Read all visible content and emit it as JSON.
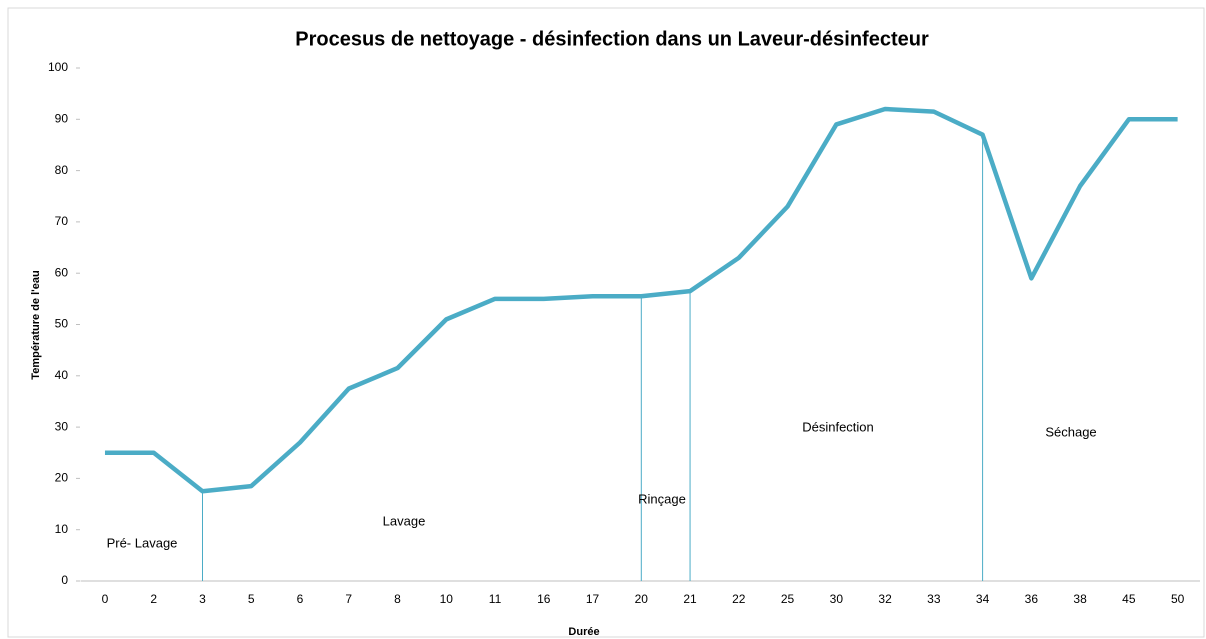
{
  "chart_data": {
    "type": "line",
    "title": "Procesus de nettoyage - désinfection dans un Laveur-désinfecteur",
    "x_label": "Durée",
    "y_label": "Température de l'eau",
    "categories": [
      "0",
      "2",
      "3",
      "5",
      "6",
      "7",
      "8",
      "10",
      "11",
      "16",
      "17",
      "20",
      "21",
      "22",
      "25",
      "30",
      "32",
      "33",
      "34",
      "36",
      "38",
      "45",
      "50"
    ],
    "series": [
      {
        "name": "Température",
        "color": "#4bacc6",
        "values": [
          25,
          25,
          17.5,
          18.5,
          27,
          37.5,
          41.5,
          51,
          55,
          55,
          55.5,
          55.5,
          56.5,
          63,
          73,
          89,
          92,
          91.5,
          87,
          59,
          77,
          90,
          90
        ]
      }
    ],
    "ylim": [
      0,
      100
    ],
    "yticks": [
      0,
      10,
      20,
      30,
      40,
      50,
      60,
      70,
      80,
      90,
      100
    ],
    "phase_boundaries": [
      2,
      11,
      12,
      18
    ],
    "annotations": [
      "Pré- Lavage",
      "Lavage",
      "Rinçage",
      "Désinfection",
      "Séchage"
    ]
  }
}
